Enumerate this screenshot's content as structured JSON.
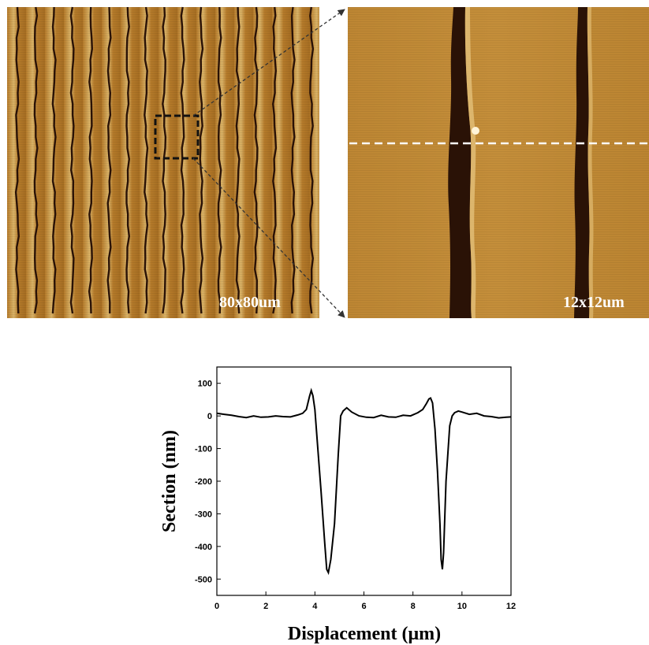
{
  "images": {
    "left_scan_label": "80x80um",
    "right_scan_label": "12x12um",
    "colors": {
      "afm_base": "#b47a2a",
      "afm_light": "#d9b267",
      "afm_dark": "#2a1206",
      "line_color": "#000000",
      "dash_color": "#ffffff"
    }
  },
  "chart_data": {
    "type": "line",
    "xlabel": "Displacement (μm)",
    "ylabel": "Section (nm)",
    "xlim": [
      0,
      12
    ],
    "ylim": [
      -550,
      150
    ],
    "xticks": [
      "0",
      "2",
      "4",
      "6",
      "8",
      "10",
      "12"
    ],
    "yticks": [
      "100",
      "0",
      "-100",
      "-200",
      "-300",
      "-400",
      "-500"
    ],
    "grid": false,
    "series": [
      {
        "x": [
          0,
          0.3,
          0.6,
          0.9,
          1.2,
          1.5,
          1.8,
          2.1,
          2.4,
          2.7,
          3.0,
          3.3,
          3.5,
          3.65,
          3.78,
          3.85,
          3.92,
          4.0,
          4.1,
          4.25,
          4.4,
          4.48,
          4.55,
          4.65,
          4.8,
          4.95,
          5.05,
          5.15,
          5.3,
          5.5,
          5.8,
          6.1,
          6.4,
          6.7,
          7.0,
          7.3,
          7.6,
          7.9,
          8.2,
          8.4,
          8.55,
          8.65,
          8.72,
          8.8,
          8.9,
          9.0,
          9.1,
          9.15,
          9.2,
          9.25,
          9.35,
          9.5,
          9.6,
          9.7,
          9.85,
          10.0,
          10.3,
          10.6,
          10.9,
          11.2,
          11.5,
          11.8,
          12.0
        ],
        "y": [
          8,
          5,
          2,
          -2,
          -5,
          0,
          -4,
          -3,
          0,
          -2,
          -3,
          3,
          8,
          20,
          60,
          78,
          62,
          20,
          -80,
          -230,
          -390,
          -470,
          -480,
          -440,
          -330,
          -120,
          0,
          15,
          25,
          12,
          0,
          -4,
          -5,
          2,
          -3,
          -4,
          2,
          0,
          10,
          20,
          38,
          52,
          55,
          40,
          -40,
          -170,
          -330,
          -440,
          -470,
          -420,
          -200,
          -30,
          0,
          10,
          15,
          12,
          5,
          8,
          0,
          -2,
          -6,
          -4,
          -3
        ]
      }
    ]
  }
}
